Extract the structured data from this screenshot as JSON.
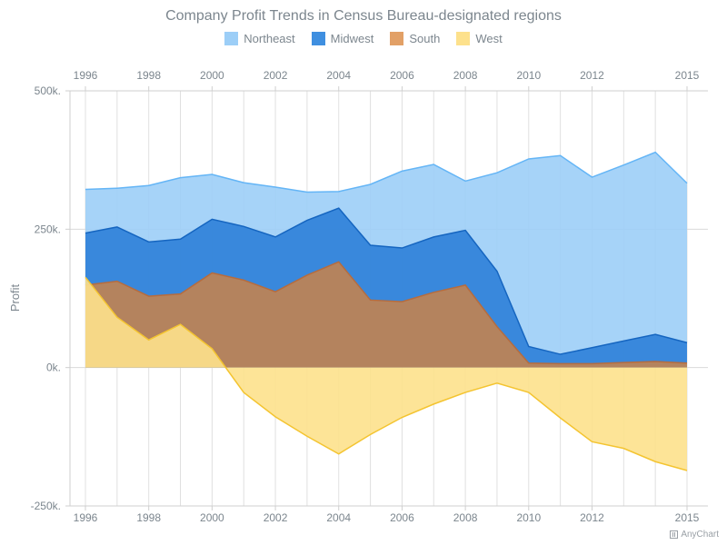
{
  "chart_data": {
    "type": "area",
    "title": "Company Profit Trends in Census Bureau-designated regions",
    "ylabel": "Profit",
    "xlabel": "",
    "x": [
      1996,
      1997,
      1998,
      1999,
      2000,
      2001,
      2002,
      2003,
      2004,
      2005,
      2006,
      2007,
      2008,
      2009,
      2010,
      2011,
      2012,
      2013,
      2014,
      2015
    ],
    "x_ticks": [
      "1996",
      "1998",
      "2000",
      "2002",
      "2004",
      "2006",
      "2008",
      "2010",
      "2012",
      "2015"
    ],
    "y_ticks": [
      "500k.",
      "250k.",
      "0k.",
      "-250k."
    ],
    "y_tick_values": [
      500000,
      250000,
      0,
      -250000
    ],
    "ylim": [
      -250000,
      500000
    ],
    "grid": true,
    "legend_position": "top",
    "series": [
      {
        "name": "Northeast",
        "color": "#9ccef7",
        "stroke": "#64b5f6",
        "values": [
          322000,
          324000,
          329000,
          343000,
          349000,
          334000,
          326000,
          317000,
          318000,
          331000,
          355000,
          367000,
          337000,
          352000,
          377000,
          383000,
          344000,
          366000,
          389000,
          333000
        ]
      },
      {
        "name": "Midwest",
        "color": "#2e7fd8",
        "stroke": "#1565c0",
        "values": [
          243000,
          254000,
          227000,
          232000,
          268000,
          255000,
          236000,
          266000,
          288000,
          221000,
          216000,
          236000,
          248000,
          174000,
          38000,
          24000,
          36000,
          48000,
          60000,
          45000
        ]
      },
      {
        "name": "South",
        "color": "#c28350",
        "stroke": "#b66c3e",
        "values": [
          149000,
          156000,
          129000,
          133000,
          171000,
          158000,
          137000,
          167000,
          191000,
          122000,
          119000,
          136000,
          149000,
          74000,
          8000,
          7000,
          7000,
          9000,
          11000,
          8000
        ]
      },
      {
        "name": "West",
        "color": "#fde18c",
        "stroke": "#f4c430",
        "values": [
          163000,
          91000,
          50000,
          78000,
          34000,
          -45000,
          -89000,
          -124000,
          -156000,
          -121000,
          -90000,
          -66000,
          -45000,
          -28000,
          -45000,
          -91000,
          -134000,
          -146000,
          -170000,
          -186000
        ]
      }
    ]
  },
  "legend": [
    {
      "label": "Northeast",
      "color": "#9ccef7"
    },
    {
      "label": "Midwest",
      "color": "#3f8fe0"
    },
    {
      "label": "South",
      "color": "#e2a066"
    },
    {
      "label": "West",
      "color": "#fde18c"
    }
  ],
  "credits": "AnyChart"
}
